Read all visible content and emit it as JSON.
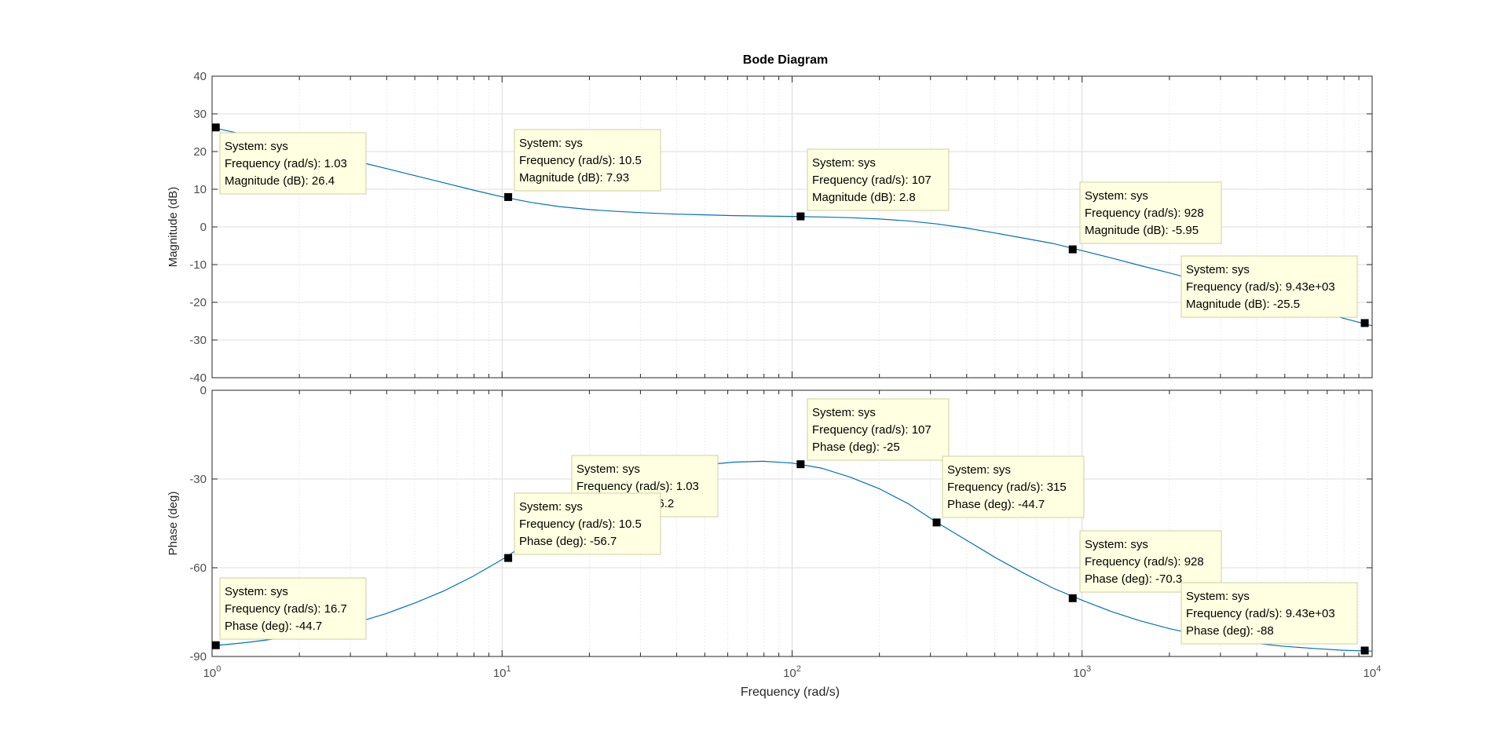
{
  "chart_data": {
    "type": "line",
    "title": "Bode Diagram",
    "xlabel": "Frequency  (rad/s)",
    "x_scale": "log",
    "xlim": [
      1,
      10000
    ],
    "x_ticks": [
      {
        "base": "10",
        "exp": "0"
      },
      {
        "base": "10",
        "exp": "1"
      },
      {
        "base": "10",
        "exp": "2"
      },
      {
        "base": "10",
        "exp": "3"
      },
      {
        "base": "10",
        "exp": "4"
      }
    ],
    "grid": true,
    "series_color": "#0072BD",
    "datatip_bg": "#FFFFE1",
    "panels": [
      {
        "id": "magnitude",
        "ylabel": "Magnitude (dB)",
        "ylim": [
          -40,
          40
        ],
        "y_ticks": [
          "40",
          "30",
          "20",
          "10",
          "0",
          "-10",
          "-20",
          "-30",
          "-40"
        ],
        "curve": {
          "x": [
            1.0,
            1.26,
            1.58,
            2.0,
            2.51,
            3.16,
            3.98,
            5.01,
            6.31,
            7.94,
            10.0,
            12.6,
            15.8,
            20.0,
            25.1,
            31.6,
            39.8,
            50.1,
            63.1,
            79.4,
            100,
            126,
            158,
            200,
            251,
            316,
            398,
            501,
            631,
            794,
            1000,
            1260,
            1580,
            2000,
            2510,
            3160,
            3980,
            5010,
            6310,
            7940,
            10000
          ],
          "y": [
            26.4,
            24.7,
            23.0,
            21.1,
            19.3,
            17.4,
            15.5,
            13.6,
            11.7,
            9.8,
            8.0,
            6.5,
            5.4,
            4.6,
            4.1,
            3.7,
            3.4,
            3.2,
            3.0,
            2.9,
            2.8,
            2.65,
            2.45,
            2.1,
            1.6,
            0.8,
            -0.3,
            -1.6,
            -3.0,
            -4.4,
            -6.3,
            -8.2,
            -10.2,
            -12.2,
            -14.2,
            -16.3,
            -18.2,
            -20.3,
            -22.2,
            -24.2,
            -26.2
          ]
        },
        "datatips": [
          {
            "x": 1.03,
            "y": 26.4,
            "lines": [
              "System: sys",
              "Frequency (rad/s): 1.03",
              "Magnitude (dB): 26.4"
            ]
          },
          {
            "x": 10.5,
            "y": 7.93,
            "lines": [
              "System: sys",
              "Frequency (rad/s): 10.5",
              "Magnitude (dB): 7.93"
            ]
          },
          {
            "x": 107,
            "y": 2.8,
            "lines": [
              "System: sys",
              "Frequency (rad/s): 107",
              "Magnitude (dB): 2.8"
            ]
          },
          {
            "x": 928,
            "y": -5.95,
            "lines": [
              "System: sys",
              "Frequency (rad/s): 928",
              "Magnitude (dB): -5.95"
            ]
          },
          {
            "x": 9430,
            "y": -25.5,
            "lines": [
              "System: sys",
              "Frequency (rad/s): 9.43e+03",
              "Magnitude (dB): -25.5"
            ]
          }
        ]
      },
      {
        "id": "phase",
        "ylabel": "Phase (deg)",
        "ylim": [
          -90,
          0
        ],
        "y_ticks": [
          "0",
          "-30",
          "-60",
          "-90"
        ],
        "curve": {
          "x": [
            1.0,
            1.26,
            1.58,
            2.0,
            2.51,
            3.16,
            3.98,
            5.01,
            6.31,
            7.94,
            10.0,
            12.6,
            15.8,
            20.0,
            25.1,
            31.6,
            39.8,
            50.1,
            63.1,
            79.4,
            100,
            126,
            158,
            200,
            251,
            316,
            398,
            501,
            631,
            794,
            1000,
            1260,
            1580,
            2000,
            2510,
            3160,
            3980,
            5010,
            6310,
            7940,
            10000
          ],
          "y": [
            -86.4,
            -85.5,
            -84.3,
            -82.8,
            -80.9,
            -78.5,
            -75.5,
            -71.9,
            -67.8,
            -62.9,
            -57.2,
            -50.8,
            -44.5,
            -38.7,
            -33.8,
            -29.8,
            -27.0,
            -25.2,
            -24.3,
            -24.0,
            -24.6,
            -26.3,
            -29.3,
            -33.3,
            -38.3,
            -44.7,
            -50.6,
            -56.5,
            -61.9,
            -66.9,
            -71.0,
            -74.8,
            -77.9,
            -80.6,
            -82.7,
            -84.3,
            -85.6,
            -86.6,
            -87.3,
            -87.9,
            -88.2
          ]
        },
        "datatips": [
          {
            "x": 1.03,
            "y": -86.2,
            "lines": [
              "System: sys",
              "Frequency (rad/s): 1.03",
              "Phase (deg): -86.2"
            ]
          },
          {
            "x": 16.7,
            "y": -44.7,
            "lines": [
              "System: sys",
              "Frequency (rad/s): 16.7",
              "Phase (deg): -44.7"
            ]
          },
          {
            "x": 10.5,
            "y": -56.7,
            "lines": [
              "System: sys",
              "Frequency (rad/s): 10.5",
              "Phase (deg): -56.7"
            ]
          },
          {
            "x": 107,
            "y": -25,
            "lines": [
              "System: sys",
              "Frequency (rad/s): 107",
              "Phase (deg): -25"
            ]
          },
          {
            "x": 315,
            "y": -44.7,
            "lines": [
              "System: sys",
              "Frequency (rad/s): 315",
              "Phase (deg): -44.7"
            ]
          },
          {
            "x": 928,
            "y": -70.3,
            "lines": [
              "System: sys",
              "Frequency (rad/s): 928",
              "Phase (deg): -70.3"
            ]
          },
          {
            "x": 9430,
            "y": -88,
            "lines": [
              "System: sys",
              "Frequency (rad/s): 9.43e+03",
              "Phase (deg): -88"
            ]
          }
        ]
      }
    ]
  }
}
